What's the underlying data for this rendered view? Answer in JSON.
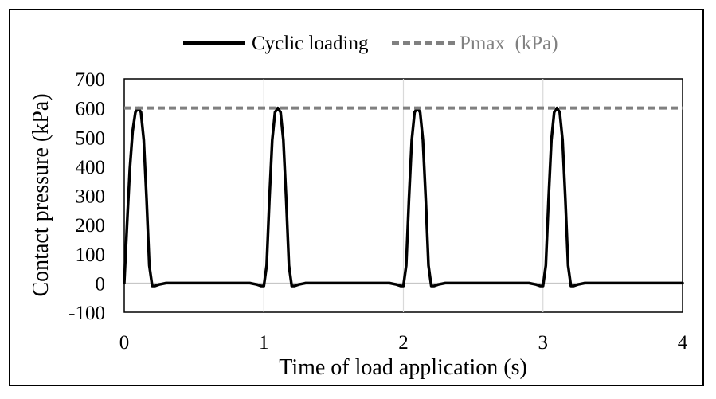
{
  "chart_data": {
    "type": "line",
    "xlabel": "Time of load application (s)",
    "ylabel": "Contact pressure (kPa)",
    "xlim": [
      0,
      4
    ],
    "ylim": [
      -100,
      700
    ],
    "x_ticks": [
      0,
      1,
      2,
      3,
      4
    ],
    "y_ticks": [
      -100,
      0,
      100,
      200,
      300,
      400,
      500,
      600,
      700
    ],
    "grid": "vertical lines at x ticks",
    "legend_position": "top",
    "series": [
      {
        "name": "Cyclic loading",
        "style": "solid",
        "color": "#000000",
        "x": [
          0,
          0.02,
          0.04,
          0.06,
          0.08,
          0.1,
          0.12,
          0.14,
          0.16,
          0.18,
          0.2,
          0.22,
          0.25,
          0.3,
          0.9,
          0.95,
          0.98,
          1.0,
          1.02,
          1.04,
          1.06,
          1.08,
          1.1,
          1.12,
          1.14,
          1.16,
          1.18,
          1.2,
          1.22,
          1.25,
          1.3,
          1.9,
          1.95,
          1.98,
          2.0,
          2.02,
          2.04,
          2.06,
          2.08,
          2.1,
          2.12,
          2.14,
          2.16,
          2.18,
          2.2,
          2.22,
          2.25,
          2.3,
          2.9,
          2.95,
          2.98,
          3.0,
          3.02,
          3.04,
          3.06,
          3.08,
          3.1,
          3.12,
          3.14,
          3.16,
          3.18,
          3.2,
          3.22,
          3.25,
          3.3,
          4.0
        ],
        "y": [
          0,
          200,
          390,
          520,
          585,
          600,
          585,
          490,
          290,
          60,
          -10,
          -10,
          -5,
          0,
          0,
          -5,
          -10,
          -10,
          60,
          290,
          490,
          585,
          600,
          585,
          490,
          290,
          60,
          -10,
          -10,
          -5,
          0,
          0,
          -5,
          -10,
          -10,
          60,
          290,
          490,
          585,
          600,
          585,
          490,
          290,
          60,
          -10,
          -10,
          -5,
          0,
          0,
          -5,
          -10,
          -10,
          60,
          290,
          490,
          585,
          600,
          585,
          490,
          290,
          60,
          -10,
          -10,
          -5,
          0,
          0
        ]
      },
      {
        "name": "Pmax  (kPa)",
        "style": "dashed",
        "color": "#808080",
        "x": [
          0,
          4
        ],
        "y": [
          600,
          600
        ]
      }
    ]
  }
}
